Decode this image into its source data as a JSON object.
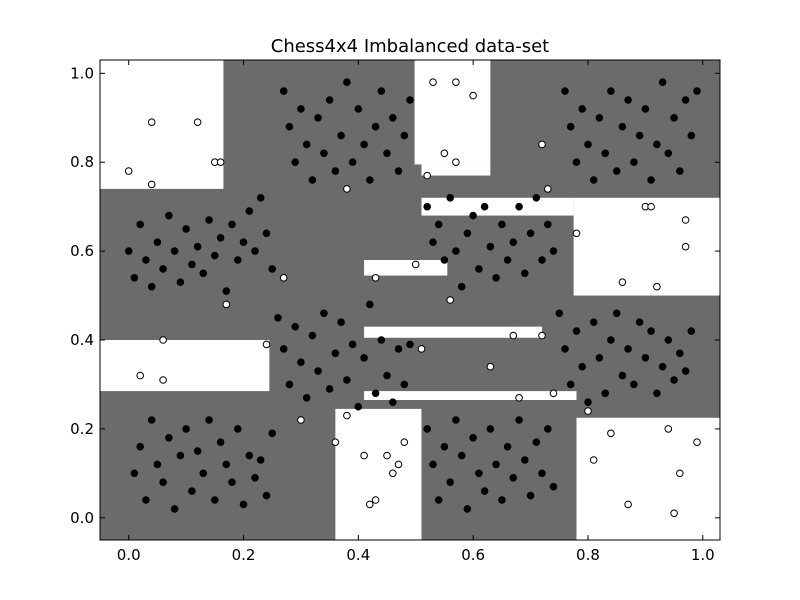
{
  "chart_data": {
    "type": "scatter",
    "title": "Chess4x4 Imbalanced data-set",
    "xlabel": "",
    "ylabel": "",
    "xlim": [
      -0.05,
      1.03
    ],
    "ylim": [
      -0.05,
      1.03
    ],
    "x_ticks": [
      0.0,
      0.2,
      0.4,
      0.6,
      0.8,
      1.0
    ],
    "y_ticks": [
      0.0,
      0.2,
      0.4,
      0.6,
      0.8,
      1.0
    ],
    "x_tick_labels": [
      "0.0",
      "0.2",
      "0.4",
      "0.6",
      "0.8",
      "1.0"
    ],
    "y_tick_labels": [
      "0.0",
      "0.2",
      "0.4",
      "0.6",
      "0.8",
      "1.0"
    ],
    "grid": false,
    "background_color": "#6b6b6b",
    "decision_region_color": "#ffffff",
    "decision_regions_white": [
      {
        "x": [
          -0.05,
          0.165
        ],
        "y": [
          0.74,
          1.03
        ]
      },
      {
        "x": [
          0.165,
          0.16
        ],
        "y": [
          0.74,
          0.742
        ]
      },
      {
        "x": [
          0.498,
          0.63
        ],
        "y": [
          0.795,
          1.03
        ]
      },
      {
        "x": [
          0.51,
          0.63
        ],
        "y": [
          0.77,
          0.795
        ]
      },
      {
        "x": [
          0.775,
          1.03
        ],
        "y": [
          0.5,
          0.72
        ]
      },
      {
        "x": [
          0.51,
          0.775
        ],
        "y": [
          0.68,
          0.72
        ]
      },
      {
        "x": [
          0.41,
          0.555
        ],
        "y": [
          0.545,
          0.58
        ]
      },
      {
        "x": [
          -0.05,
          0.245
        ],
        "y": [
          0.285,
          0.4
        ]
      },
      {
        "x": [
          0.36,
          0.51
        ],
        "y": [
          -0.05,
          0.245
        ]
      },
      {
        "x": [
          0.41,
          0.78
        ],
        "y": [
          0.265,
          0.285
        ]
      },
      {
        "x": [
          0.41,
          0.675
        ],
        "y": [
          0.405,
          0.43
        ]
      },
      {
        "x": [
          0.675,
          0.72
        ],
        "y": [
          0.405,
          0.43
        ]
      },
      {
        "x": [
          0.78,
          1.03
        ],
        "y": [
          -0.05,
          0.225
        ]
      }
    ],
    "series": [
      {
        "name": "",
        "marker_fill": "#000000",
        "points": [
          [
            0.0,
            0.6
          ],
          [
            0.01,
            0.54
          ],
          [
            0.02,
            0.66
          ],
          [
            0.03,
            0.58
          ],
          [
            0.04,
            0.52
          ],
          [
            0.05,
            0.62
          ],
          [
            0.06,
            0.56
          ],
          [
            0.07,
            0.68
          ],
          [
            0.08,
            0.6
          ],
          [
            0.09,
            0.53
          ],
          [
            0.1,
            0.65
          ],
          [
            0.11,
            0.57
          ],
          [
            0.12,
            0.61
          ],
          [
            0.13,
            0.55
          ],
          [
            0.14,
            0.67
          ],
          [
            0.15,
            0.59
          ],
          [
            0.16,
            0.63
          ],
          [
            0.17,
            0.51
          ],
          [
            0.18,
            0.66
          ],
          [
            0.19,
            0.58
          ],
          [
            0.2,
            0.62
          ],
          [
            0.21,
            0.69
          ],
          [
            0.22,
            0.6
          ],
          [
            0.23,
            0.72
          ],
          [
            0.24,
            0.64
          ],
          [
            0.25,
            0.56
          ],
          [
            0.01,
            0.1
          ],
          [
            0.02,
            0.16
          ],
          [
            0.03,
            0.04
          ],
          [
            0.04,
            0.22
          ],
          [
            0.05,
            0.12
          ],
          [
            0.06,
            0.08
          ],
          [
            0.07,
            0.18
          ],
          [
            0.08,
            0.02
          ],
          [
            0.09,
            0.14
          ],
          [
            0.1,
            0.2
          ],
          [
            0.11,
            0.06
          ],
          [
            0.12,
            0.15
          ],
          [
            0.13,
            0.1
          ],
          [
            0.14,
            0.22
          ],
          [
            0.15,
            0.04
          ],
          [
            0.16,
            0.17
          ],
          [
            0.17,
            0.12
          ],
          [
            0.18,
            0.08
          ],
          [
            0.19,
            0.2
          ],
          [
            0.2,
            0.03
          ],
          [
            0.21,
            0.14
          ],
          [
            0.22,
            0.09
          ],
          [
            0.23,
            0.13
          ],
          [
            0.24,
            0.05
          ],
          [
            0.25,
            0.19
          ],
          [
            0.27,
            0.96
          ],
          [
            0.28,
            0.88
          ],
          [
            0.29,
            0.8
          ],
          [
            0.3,
            0.92
          ],
          [
            0.31,
            0.84
          ],
          [
            0.32,
            0.76
          ],
          [
            0.33,
            0.9
          ],
          [
            0.34,
            0.82
          ],
          [
            0.35,
            0.94
          ],
          [
            0.36,
            0.78
          ],
          [
            0.37,
            0.86
          ],
          [
            0.38,
            0.98
          ],
          [
            0.39,
            0.8
          ],
          [
            0.4,
            0.92
          ],
          [
            0.41,
            0.84
          ],
          [
            0.42,
            0.76
          ],
          [
            0.43,
            0.88
          ],
          [
            0.44,
            0.96
          ],
          [
            0.45,
            0.82
          ],
          [
            0.46,
            0.9
          ],
          [
            0.47,
            0.78
          ],
          [
            0.48,
            0.86
          ],
          [
            0.49,
            0.94
          ],
          [
            0.26,
            0.45
          ],
          [
            0.27,
            0.38
          ],
          [
            0.28,
            0.3
          ],
          [
            0.29,
            0.43
          ],
          [
            0.3,
            0.35
          ],
          [
            0.31,
            0.27
          ],
          [
            0.32,
            0.41
          ],
          [
            0.33,
            0.33
          ],
          [
            0.34,
            0.46
          ],
          [
            0.35,
            0.29
          ],
          [
            0.36,
            0.37
          ],
          [
            0.37,
            0.44
          ],
          [
            0.38,
            0.31
          ],
          [
            0.39,
            0.39
          ],
          [
            0.4,
            0.25
          ],
          [
            0.41,
            0.36
          ],
          [
            0.42,
            0.48
          ],
          [
            0.43,
            0.28
          ],
          [
            0.44,
            0.4
          ],
          [
            0.45,
            0.32
          ],
          [
            0.46,
            0.26
          ],
          [
            0.47,
            0.38
          ],
          [
            0.48,
            0.3
          ],
          [
            0.49,
            0.39
          ],
          [
            0.52,
            0.7
          ],
          [
            0.53,
            0.62
          ],
          [
            0.54,
            0.66
          ],
          [
            0.55,
            0.58
          ],
          [
            0.56,
            0.72
          ],
          [
            0.57,
            0.6
          ],
          [
            0.58,
            0.52
          ],
          [
            0.59,
            0.64
          ],
          [
            0.6,
            0.68
          ],
          [
            0.61,
            0.56
          ],
          [
            0.62,
            0.7
          ],
          [
            0.63,
            0.61
          ],
          [
            0.64,
            0.54
          ],
          [
            0.65,
            0.66
          ],
          [
            0.66,
            0.58
          ],
          [
            0.67,
            0.62
          ],
          [
            0.68,
            0.7
          ],
          [
            0.69,
            0.55
          ],
          [
            0.7,
            0.64
          ],
          [
            0.71,
            0.72
          ],
          [
            0.72,
            0.58
          ],
          [
            0.73,
            0.66
          ],
          [
            0.74,
            0.6
          ],
          [
            0.52,
            0.2
          ],
          [
            0.53,
            0.12
          ],
          [
            0.54,
            0.04
          ],
          [
            0.55,
            0.16
          ],
          [
            0.56,
            0.08
          ],
          [
            0.57,
            0.22
          ],
          [
            0.58,
            0.14
          ],
          [
            0.59,
            0.02
          ],
          [
            0.6,
            0.18
          ],
          [
            0.61,
            0.1
          ],
          [
            0.62,
            0.06
          ],
          [
            0.63,
            0.2
          ],
          [
            0.64,
            0.12
          ],
          [
            0.65,
            0.04
          ],
          [
            0.66,
            0.16
          ],
          [
            0.67,
            0.09
          ],
          [
            0.68,
            0.22
          ],
          [
            0.69,
            0.13
          ],
          [
            0.7,
            0.05
          ],
          [
            0.71,
            0.17
          ],
          [
            0.72,
            0.1
          ],
          [
            0.73,
            0.2
          ],
          [
            0.74,
            0.07
          ],
          [
            0.76,
            0.96
          ],
          [
            0.77,
            0.88
          ],
          [
            0.78,
            0.8
          ],
          [
            0.79,
            0.92
          ],
          [
            0.8,
            0.84
          ],
          [
            0.81,
            0.76
          ],
          [
            0.82,
            0.9
          ],
          [
            0.83,
            0.82
          ],
          [
            0.84,
            0.96
          ],
          [
            0.85,
            0.78
          ],
          [
            0.86,
            0.88
          ],
          [
            0.87,
            0.94
          ],
          [
            0.88,
            0.8
          ],
          [
            0.89,
            0.86
          ],
          [
            0.9,
            0.92
          ],
          [
            0.91,
            0.76
          ],
          [
            0.92,
            0.84
          ],
          [
            0.93,
            0.98
          ],
          [
            0.94,
            0.82
          ],
          [
            0.95,
            0.9
          ],
          [
            0.96,
            0.78
          ],
          [
            0.97,
            0.94
          ],
          [
            0.98,
            0.86
          ],
          [
            0.99,
            0.96
          ],
          [
            0.75,
            0.46
          ],
          [
            0.76,
            0.38
          ],
          [
            0.77,
            0.3
          ],
          [
            0.78,
            0.42
          ],
          [
            0.79,
            0.34
          ],
          [
            0.8,
            0.26
          ],
          [
            0.81,
            0.44
          ],
          [
            0.82,
            0.36
          ],
          [
            0.83,
            0.28
          ],
          [
            0.84,
            0.4
          ],
          [
            0.85,
            0.46
          ],
          [
            0.86,
            0.32
          ],
          [
            0.87,
            0.38
          ],
          [
            0.88,
            0.3
          ],
          [
            0.89,
            0.44
          ],
          [
            0.9,
            0.36
          ],
          [
            0.91,
            0.42
          ],
          [
            0.92,
            0.28
          ],
          [
            0.93,
            0.34
          ],
          [
            0.94,
            0.4
          ],
          [
            0.95,
            0.31
          ],
          [
            0.96,
            0.37
          ],
          [
            0.97,
            0.33
          ],
          [
            0.98,
            0.42
          ]
        ]
      },
      {
        "name": "",
        "marker_fill": "#ffffff",
        "points": [
          [
            0.0,
            0.78
          ],
          [
            0.04,
            0.89
          ],
          [
            0.04,
            0.75
          ],
          [
            0.12,
            0.89
          ],
          [
            0.15,
            0.8
          ],
          [
            0.16,
            0.8
          ],
          [
            0.52,
            0.77
          ],
          [
            0.53,
            0.98
          ],
          [
            0.57,
            0.98
          ],
          [
            0.55,
            0.82
          ],
          [
            0.57,
            0.8
          ],
          [
            0.6,
            0.95
          ],
          [
            0.72,
            0.84
          ],
          [
            0.73,
            0.74
          ],
          [
            0.78,
            0.64
          ],
          [
            0.9,
            0.7
          ],
          [
            0.91,
            0.7
          ],
          [
            0.97,
            0.67
          ],
          [
            0.97,
            0.61
          ],
          [
            0.38,
            0.74
          ],
          [
            0.43,
            0.54
          ],
          [
            0.5,
            0.57
          ],
          [
            0.17,
            0.48
          ],
          [
            0.27,
            0.54
          ],
          [
            0.24,
            0.39
          ],
          [
            0.06,
            0.4
          ],
          [
            0.02,
            0.32
          ],
          [
            0.06,
            0.31
          ],
          [
            0.3,
            0.22
          ],
          [
            0.38,
            0.23
          ],
          [
            0.36,
            0.17
          ],
          [
            0.41,
            0.14
          ],
          [
            0.42,
            0.03
          ],
          [
            0.43,
            0.04
          ],
          [
            0.45,
            0.14
          ],
          [
            0.46,
            0.1
          ],
          [
            0.47,
            0.12
          ],
          [
            0.48,
            0.17
          ],
          [
            0.51,
            0.38
          ],
          [
            0.56,
            0.49
          ],
          [
            0.63,
            0.34
          ],
          [
            0.67,
            0.41
          ],
          [
            0.68,
            0.27
          ],
          [
            0.72,
            0.41
          ],
          [
            0.74,
            0.28
          ],
          [
            0.8,
            0.24
          ],
          [
            0.81,
            0.13
          ],
          [
            0.84,
            0.19
          ],
          [
            0.86,
            0.53
          ],
          [
            0.87,
            0.03
          ],
          [
            0.92,
            0.52
          ],
          [
            0.94,
            0.2
          ],
          [
            0.95,
            0.01
          ],
          [
            0.96,
            0.1
          ],
          [
            0.99,
            0.17
          ]
        ]
      }
    ]
  }
}
